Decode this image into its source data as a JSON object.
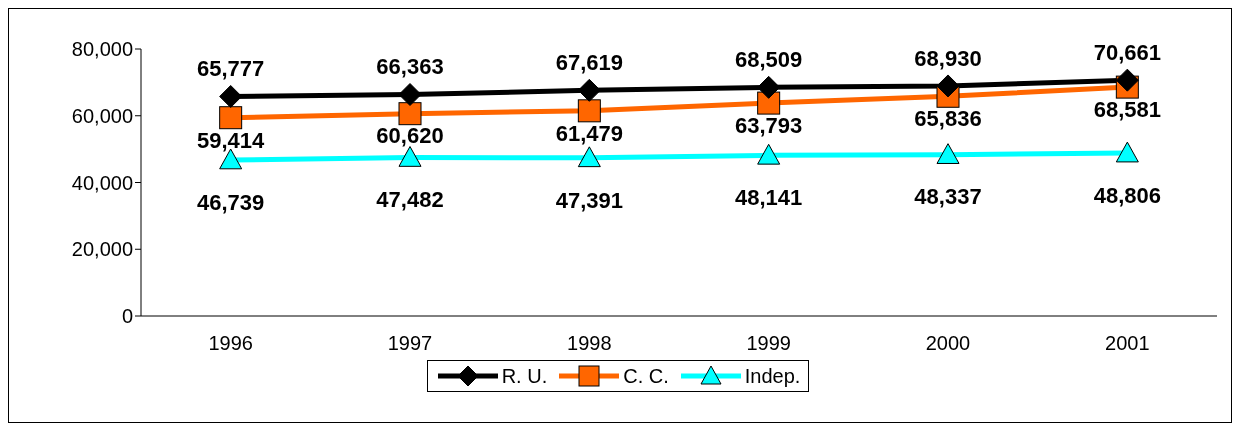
{
  "chart_data": {
    "type": "line",
    "categories": [
      "1996",
      "1997",
      "1998",
      "1999",
      "2000",
      "2001"
    ],
    "ylim": [
      0,
      80000
    ],
    "yticks": [
      {
        "value": 0,
        "label": "0"
      },
      {
        "value": 20000,
        "label": "20,000"
      },
      {
        "value": 40000,
        "label": "40,000"
      },
      {
        "value": 60000,
        "label": "60,000"
      },
      {
        "value": 80000,
        "label": "80,000"
      }
    ],
    "grid": false,
    "legend": "bottom",
    "line_style": "solid",
    "series": [
      {
        "name": "R. U.",
        "color": "#000000",
        "marker": "diamond",
        "values": [
          65777,
          66363,
          67619,
          68509,
          68930,
          70661
        ],
        "value_labels": [
          "65,777",
          "66,363",
          "67,619",
          "68,509",
          "68,930",
          "70,661"
        ]
      },
      {
        "name": "C. C.",
        "color": "#ff6600",
        "marker": "square",
        "values": [
          59414,
          60620,
          61479,
          63793,
          65836,
          68581
        ],
        "value_labels": [
          "59,414",
          "60,620",
          "61,479",
          "63,793",
          "65,836",
          "68,581"
        ]
      },
      {
        "name": "Indep.",
        "color": "#00ffff",
        "marker": "triangle",
        "values": [
          46739,
          47482,
          47391,
          48141,
          48337,
          48806
        ],
        "value_labels": [
          "46,739",
          "47,482",
          "47,391",
          "48,141",
          "48,337",
          "48,806"
        ]
      }
    ]
  }
}
